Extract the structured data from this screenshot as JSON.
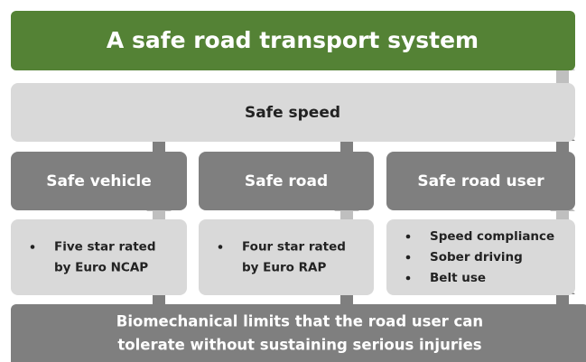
{
  "title": "A safe road transport system",
  "speed": "Safe speed",
  "pillars": [
    {
      "label": "Safe vehicle",
      "bullets": [
        {
          "lines": [
            "Five star rated",
            "by Euro NCAP"
          ]
        }
      ]
    },
    {
      "label": "Safe road",
      "bullets": [
        {
          "lines": [
            "Four star rated",
            "by Euro RAP"
          ]
        }
      ]
    },
    {
      "label": "Safe road user",
      "bullets": [
        {
          "lines": [
            "Speed compliance"
          ]
        },
        {
          "lines": [
            "Sober driving"
          ]
        },
        {
          "lines": [
            "Belt use"
          ]
        }
      ]
    }
  ],
  "base": {
    "lines": [
      "Biomechanical limits that the road user can",
      "tolerate without sustaining serious injuries"
    ]
  }
}
